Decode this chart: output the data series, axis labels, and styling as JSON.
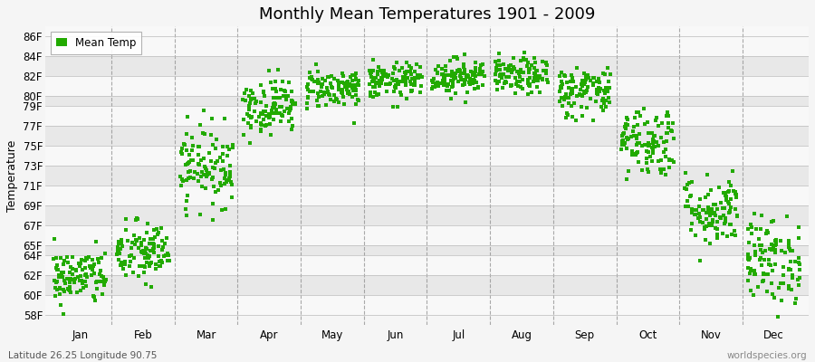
{
  "title": "Monthly Mean Temperatures 1901 - 2009",
  "ylabel": "Temperature",
  "footer_left": "Latitude 26.25 Longitude 90.75",
  "footer_right": "worldspecies.org",
  "legend_label": "Mean Temp",
  "dot_color": "#22aa00",
  "background_color": "#f5f5f5",
  "plot_bg_color": "#f5f5f5",
  "band_color_light": "#f8f8f8",
  "band_color_dark": "#e8e8e8",
  "ylim": [
    57,
    87
  ],
  "yticks": [
    58,
    60,
    62,
    64,
    65,
    67,
    69,
    71,
    73,
    75,
    77,
    79,
    80,
    82,
    84,
    86
  ],
  "months": [
    "Jan",
    "Feb",
    "Mar",
    "Apr",
    "May",
    "Jun",
    "Jul",
    "Aug",
    "Sep",
    "Oct",
    "Nov",
    "Dec"
  ],
  "seed": 42,
  "monthly_means": [
    61.8,
    64.2,
    73.0,
    79.0,
    80.8,
    81.5,
    82.0,
    82.0,
    80.5,
    75.5,
    68.5,
    63.5
  ],
  "monthly_stds": [
    1.4,
    1.6,
    2.0,
    1.4,
    1.0,
    0.9,
    0.9,
    0.9,
    1.3,
    1.8,
    1.8,
    2.2
  ],
  "n_years": 109,
  "figsize": [
    9.0,
    4.0
  ],
  "dpi": 100,
  "marker_size": 3.5,
  "title_fontsize": 13,
  "axis_fontsize": 9,
  "tick_fontsize": 8.5,
  "legend_fontsize": 8.5
}
